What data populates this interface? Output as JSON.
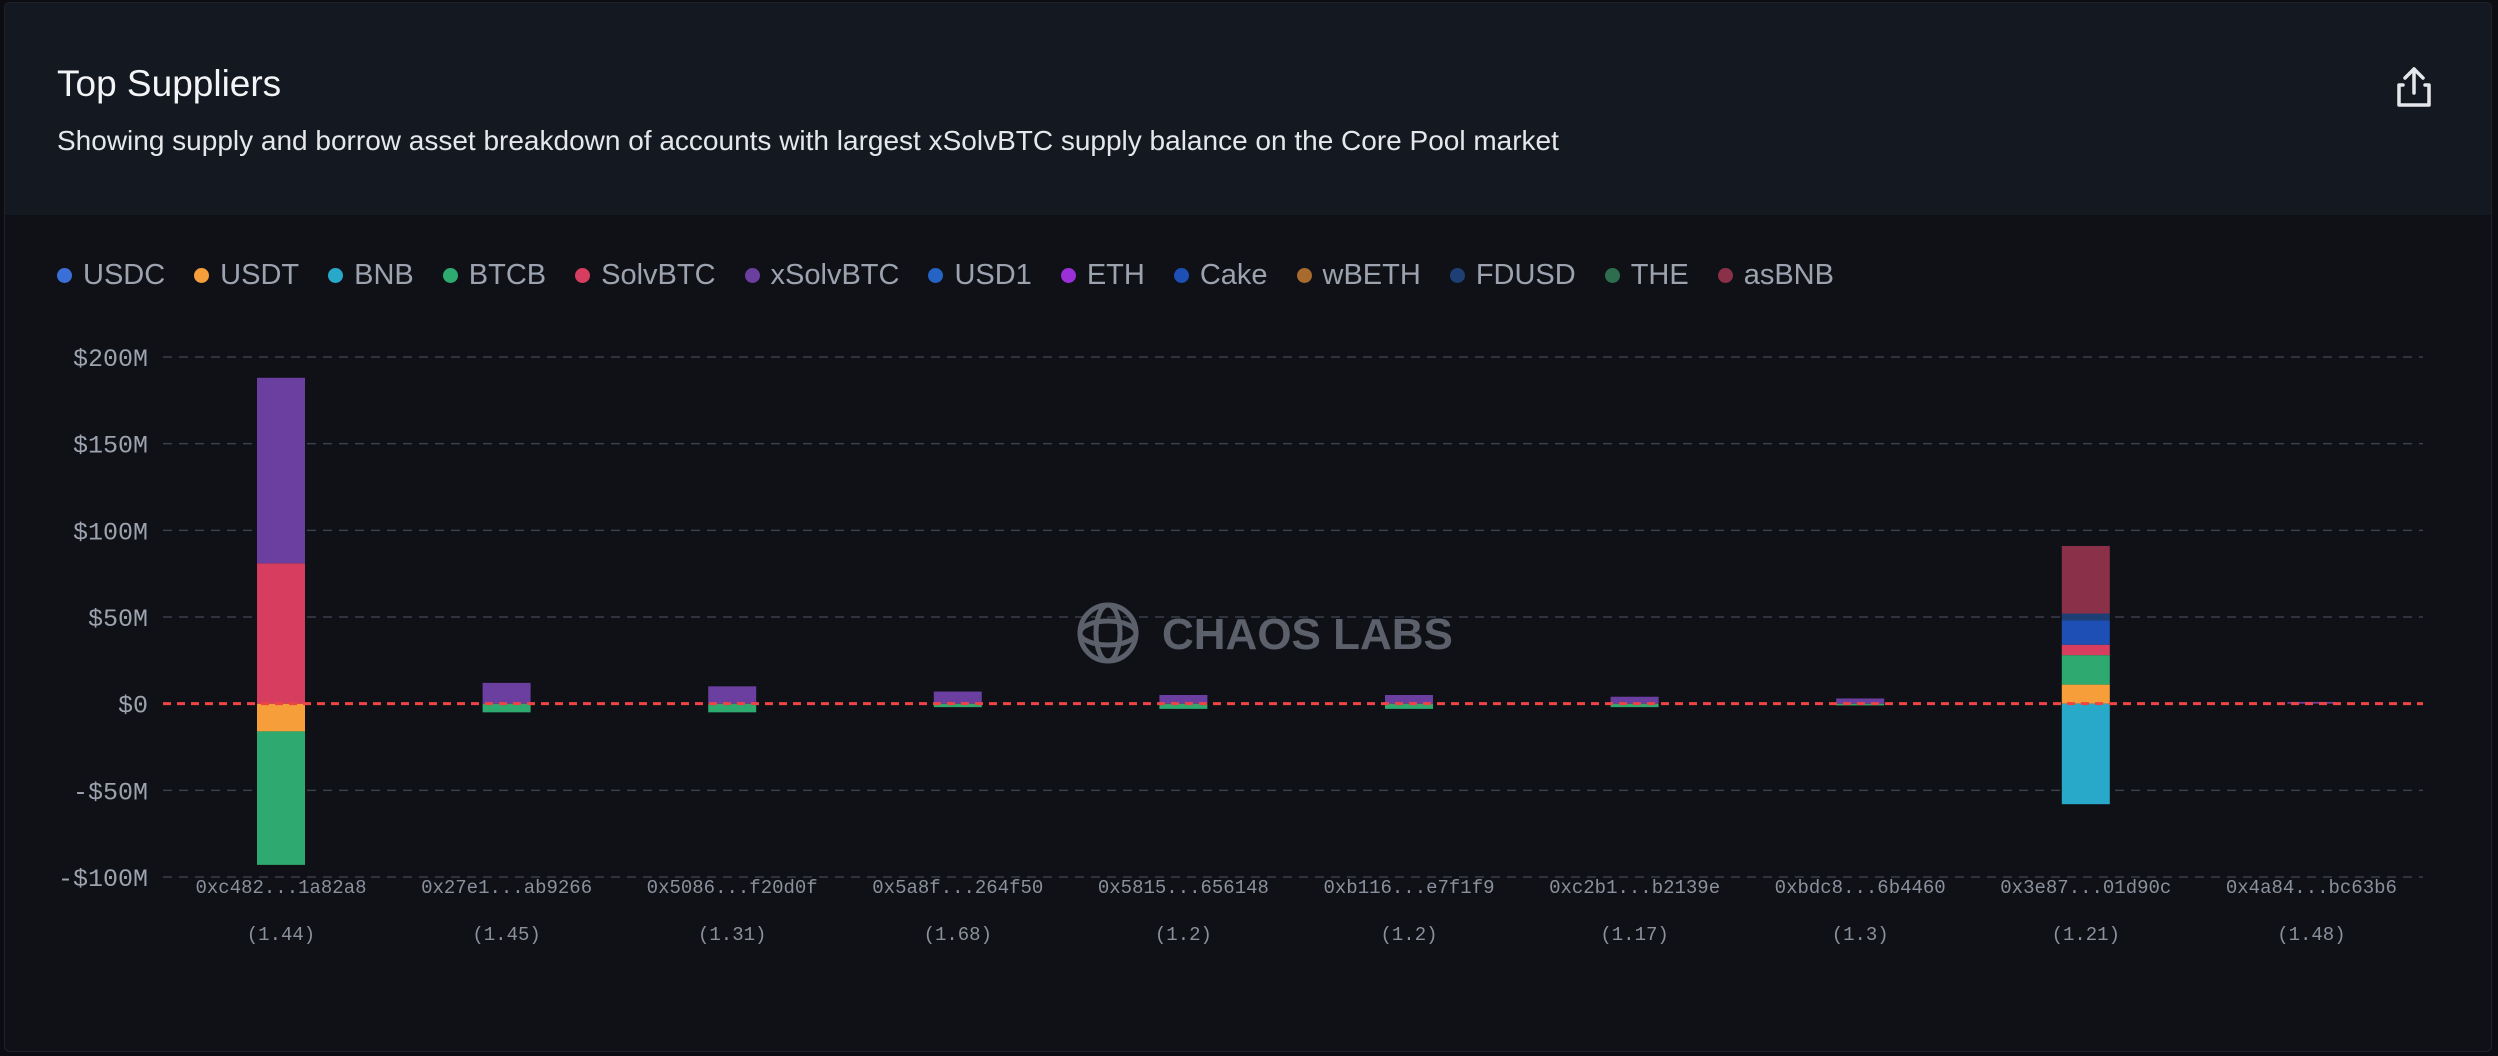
{
  "header": {
    "title": "Top Suppliers",
    "subtitle": "Showing supply and borrow asset breakdown of accounts with largest xSolvBTC supply balance on the Core Pool market",
    "export_icon": "share-upload-icon"
  },
  "watermark": {
    "text": "CHAOS LABS",
    "icon": "chaos-labs-logo-icon"
  },
  "colors": {
    "background": "#0f1117",
    "header": "#141821",
    "grid": "#3a3f4a",
    "zero_line": "#ef4444",
    "USDC": "#3b6fd8",
    "USDT": "#f59e3a",
    "BNB": "#29a9c9",
    "BTCB": "#2eaa70",
    "SolvBTC": "#d63d5e",
    "xSolvBTC": "#6b3fa0",
    "USD1": "#2563c4",
    "ETH": "#9b30d9",
    "Cake": "#1e4fb5",
    "wBETH": "#a86a2d",
    "FDUSD": "#1d3f74",
    "THE": "#2d6e4e",
    "asBNB": "#8a3048"
  },
  "chart_data": {
    "type": "bar",
    "stacked": true,
    "grid": true,
    "legend_position": "top-left",
    "ylim": [
      -100,
      200
    ],
    "y_ticks": [
      {
        "value": 200,
        "label": "$200M"
      },
      {
        "value": 150,
        "label": "$150M"
      },
      {
        "value": 100,
        "label": "$100M"
      },
      {
        "value": 50,
        "label": "$50M"
      },
      {
        "value": 0,
        "label": "$0"
      },
      {
        "value": -50,
        "label": "-$50M"
      },
      {
        "value": -100,
        "label": "-$100M"
      }
    ],
    "categories": [
      "0xc482...1a82a8",
      "0x27e1...ab9266",
      "0x5086...f20d0f",
      "0x5a8f...264f50",
      "0x5815...656148",
      "0xb116...e7f1f9",
      "0xc2b1...b2139e",
      "0xbdc8...6b4460",
      "0x3e87...01d90c",
      "0x4a84...bc63b6"
    ],
    "health_factors": [
      "(1.44)",
      "(1.45)",
      "(1.31)",
      "(1.68)",
      "(1.2)",
      "(1.2)",
      "(1.17)",
      "(1.3)",
      "(1.21)",
      "(1.48)"
    ],
    "series": [
      {
        "name": "USDC",
        "values": [
          0,
          0,
          0,
          0,
          0,
          0,
          0,
          0,
          0,
          0
        ]
      },
      {
        "name": "USDT",
        "values": [
          -16,
          0,
          0,
          0,
          0,
          0,
          0,
          0,
          11,
          0
        ]
      },
      {
        "name": "BNB",
        "values": [
          0,
          0,
          0,
          0,
          0,
          0,
          0,
          0,
          -58,
          0
        ]
      },
      {
        "name": "BTCB",
        "values": [
          -77,
          -5,
          -5,
          -2,
          -3,
          -3,
          -2,
          -1,
          17,
          0
        ]
      },
      {
        "name": "SolvBTC",
        "values": [
          81,
          0,
          0,
          0,
          0,
          0,
          0,
          0,
          6,
          0
        ]
      },
      {
        "name": "xSolvBTC",
        "values": [
          107,
          12,
          10,
          7,
          5,
          5,
          4,
          3,
          0,
          1
        ]
      },
      {
        "name": "USD1",
        "values": [
          0,
          0,
          0,
          0,
          0,
          0,
          0,
          0,
          0,
          0
        ]
      },
      {
        "name": "ETH",
        "values": [
          0,
          0,
          0,
          0,
          0,
          0,
          0,
          0,
          0,
          0
        ]
      },
      {
        "name": "Cake",
        "values": [
          0,
          0,
          0,
          0,
          0,
          0,
          0,
          0,
          14,
          0
        ]
      },
      {
        "name": "wBETH",
        "values": [
          0,
          0,
          0,
          0,
          0,
          0,
          0,
          0,
          0,
          0
        ]
      },
      {
        "name": "FDUSD",
        "values": [
          0,
          0,
          0,
          0,
          0,
          0,
          0,
          0,
          4,
          0
        ]
      },
      {
        "name": "THE",
        "values": [
          0,
          0,
          0,
          0,
          0,
          0,
          0,
          0,
          0,
          0
        ]
      },
      {
        "name": "asBNB",
        "values": [
          0,
          0,
          0,
          0,
          0,
          0,
          0,
          0,
          39,
          0
        ]
      }
    ]
  }
}
